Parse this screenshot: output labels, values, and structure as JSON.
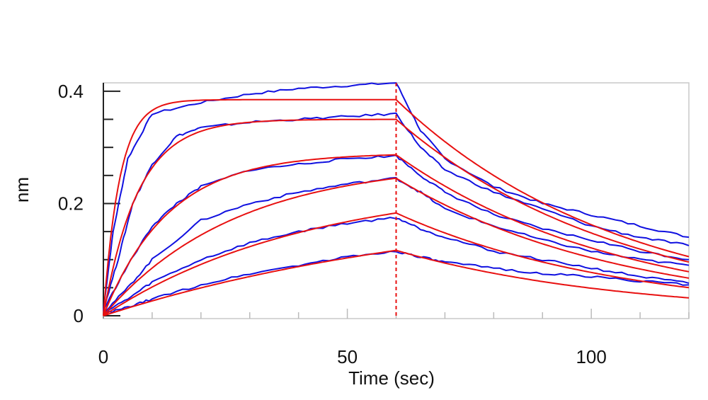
{
  "chart_data": {
    "type": "line",
    "title": "",
    "xlabel": "Time (sec)",
    "ylabel": "nm",
    "xlim": [
      0,
      120
    ],
    "ylim": [
      -0.005,
      0.415
    ],
    "x_ticks": [
      0,
      50,
      100
    ],
    "x_tick_labels": [
      "0",
      "50",
      "100"
    ],
    "y_ticks": [
      0,
      0.2,
      0.4
    ],
    "y_tick_labels": [
      "0",
      "0.2",
      "0.4"
    ],
    "association_end_time": 60,
    "grid": false,
    "legend": "none",
    "measured_color": "#1010e0",
    "fit_color": "#e81010",
    "measured_series": [
      {
        "points": [
          [
            0,
            0.01
          ],
          [
            2,
            0.15
          ],
          [
            5,
            0.28
          ],
          [
            10,
            0.36
          ],
          [
            20,
            0.38
          ],
          [
            30,
            0.395
          ],
          [
            40,
            0.405
          ],
          [
            50,
            0.41
          ],
          [
            60,
            0.415
          ],
          [
            65,
            0.33
          ],
          [
            70,
            0.28
          ],
          [
            80,
            0.23
          ],
          [
            90,
            0.2
          ],
          [
            100,
            0.18
          ],
          [
            110,
            0.16
          ],
          [
            120,
            0.14
          ]
        ]
      },
      {
        "points": [
          [
            0,
            0.01
          ],
          [
            3,
            0.1
          ],
          [
            6,
            0.2
          ],
          [
            10,
            0.27
          ],
          [
            15,
            0.32
          ],
          [
            20,
            0.335
          ],
          [
            30,
            0.345
          ],
          [
            40,
            0.35
          ],
          [
            50,
            0.355
          ],
          [
            60,
            0.36
          ],
          [
            65,
            0.3
          ],
          [
            70,
            0.26
          ],
          [
            80,
            0.22
          ],
          [
            90,
            0.19
          ],
          [
            100,
            0.16
          ],
          [
            110,
            0.14
          ],
          [
            120,
            0.125
          ]
        ]
      },
      {
        "points": [
          [
            0,
            0.01
          ],
          [
            5,
            0.09
          ],
          [
            10,
            0.16
          ],
          [
            15,
            0.2
          ],
          [
            20,
            0.23
          ],
          [
            30,
            0.26
          ],
          [
            40,
            0.27
          ],
          [
            50,
            0.28
          ],
          [
            60,
            0.285
          ],
          [
            65,
            0.25
          ],
          [
            70,
            0.22
          ],
          [
            80,
            0.18
          ],
          [
            90,
            0.155
          ],
          [
            100,
            0.135
          ],
          [
            110,
            0.115
          ],
          [
            120,
            0.1
          ]
        ]
      },
      {
        "points": [
          [
            0,
            0.005
          ],
          [
            5,
            0.05
          ],
          [
            10,
            0.1
          ],
          [
            20,
            0.17
          ],
          [
            30,
            0.2
          ],
          [
            40,
            0.22
          ],
          [
            50,
            0.235
          ],
          [
            60,
            0.245
          ],
          [
            65,
            0.22
          ],
          [
            70,
            0.19
          ],
          [
            80,
            0.16
          ],
          [
            90,
            0.135
          ],
          [
            100,
            0.115
          ],
          [
            110,
            0.1
          ],
          [
            120,
            0.09
          ]
        ]
      },
      {
        "points": [
          [
            0,
            0.005
          ],
          [
            5,
            0.03
          ],
          [
            10,
            0.06
          ],
          [
            20,
            0.1
          ],
          [
            30,
            0.13
          ],
          [
            40,
            0.15
          ],
          [
            50,
            0.165
          ],
          [
            60,
            0.175
          ],
          [
            65,
            0.155
          ],
          [
            70,
            0.14
          ],
          [
            80,
            0.115
          ],
          [
            90,
            0.1
          ],
          [
            100,
            0.085
          ],
          [
            110,
            0.07
          ],
          [
            120,
            0.058
          ]
        ]
      },
      {
        "points": [
          [
            0,
            0.003
          ],
          [
            5,
            0.015
          ],
          [
            10,
            0.03
          ],
          [
            20,
            0.055
          ],
          [
            30,
            0.075
          ],
          [
            40,
            0.09
          ],
          [
            50,
            0.105
          ],
          [
            60,
            0.115
          ],
          [
            65,
            0.105
          ],
          [
            70,
            0.095
          ],
          [
            80,
            0.085
          ],
          [
            90,
            0.075
          ],
          [
            100,
            0.07
          ],
          [
            110,
            0.062
          ],
          [
            120,
            0.055
          ]
        ]
      }
    ],
    "fit_series": [
      {
        "rmax": 0.385,
        "kobs": 0.3,
        "kd": 0.036
      },
      {
        "rmax": 0.35,
        "kobs": 0.14,
        "kd": 0.036
      },
      {
        "rmax": 0.29,
        "kobs": 0.075,
        "kd": 0.036
      },
      {
        "rmax": 0.275,
        "kobs": 0.037,
        "kd": 0.036
      },
      {
        "rmax": 0.24,
        "kobs": 0.024,
        "kd": 0.036
      },
      {
        "rmax": 0.21,
        "kobs": 0.0135,
        "kd": 0.036
      }
    ]
  }
}
